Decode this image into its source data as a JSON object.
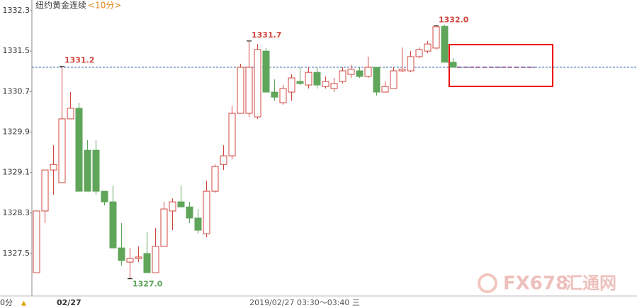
{
  "chart_data": {
    "type": "candlestick",
    "title": "纽约黄金连续",
    "period_label": "<10分>",
    "open": [
      1327.12,
      1328.34,
      1329.15,
      1328.9,
      1330.16,
      1330.37,
      1329.54,
      1329.54,
      1328.73,
      1328.52,
      1327.61,
      1327.33,
      1327.4,
      1327.5,
      1327.12,
      1327.64,
      1328.34,
      1328.52,
      1328.42,
      1328.2,
      1327.89,
      1328.73,
      1329.26,
      1329.43,
      1330.27,
      1330.27,
      1330.2,
      1331.5,
      1330.69,
      1330.48,
      1330.69,
      1330.9,
      1330.83,
      1331.08,
      1330.8,
      1330.76,
      1330.9,
      1331.04,
      1331.11,
      1331.0,
      1331.18,
      1330.69,
      1330.76,
      1331.11,
      1331.11,
      1331.39,
      1331.5,
      1331.56,
      1331.99,
      1331.28
    ],
    "high": [
      1328.34,
      1329.15,
      1329.64,
      1331.2,
      1330.69,
      1330.48,
      1329.74,
      1329.74,
      1328.73,
      1328.84,
      1328.1,
      1327.61,
      1327.64,
      1327.92,
      1328.0,
      1328.52,
      1328.59,
      1328.84,
      1328.52,
      1328.38,
      1328.94,
      1329.26,
      1329.64,
      1330.41,
      1331.25,
      1331.7,
      1331.64,
      1331.56,
      1330.94,
      1330.83,
      1331.04,
      1331.18,
      1331.18,
      1331.18,
      1331.0,
      1330.97,
      1331.18,
      1331.23,
      1331.18,
      1331.39,
      1331.18,
      1330.9,
      1331.18,
      1331.57,
      1331.5,
      1331.57,
      1331.7,
      1332.0,
      1332.02,
      1331.36
    ],
    "low": [
      1327.12,
      1328.1,
      1328.66,
      1328.9,
      1330.16,
      1328.73,
      1328.73,
      1328.66,
      1328.45,
      1327.61,
      1327.26,
      1327.0,
      1327.33,
      1327.12,
      1327.12,
      1327.64,
      1327.96,
      1328.42,
      1328.1,
      1327.89,
      1327.82,
      1328.7,
      1329.15,
      1329.36,
      1330.27,
      1330.2,
      1330.16,
      1330.69,
      1330.52,
      1330.44,
      1330.52,
      1330.83,
      1330.76,
      1330.76,
      1330.76,
      1330.69,
      1330.86,
      1330.97,
      1330.97,
      1330.97,
      1330.62,
      1330.69,
      1330.76,
      1331.08,
      1331.08,
      1331.36,
      1331.46,
      1331.53,
      1331.28,
      1331.18
    ],
    "close": [
      1328.34,
      1329.15,
      1329.26,
      1330.16,
      1330.37,
      1328.73,
      1328.73,
      1328.73,
      1328.52,
      1327.61,
      1327.36,
      1327.4,
      1327.43,
      1327.12,
      1327.64,
      1328.38,
      1328.52,
      1328.42,
      1328.2,
      1327.96,
      1328.73,
      1329.22,
      1329.43,
      1330.27,
      1331.18,
      1331.18,
      1331.53,
      1330.69,
      1330.59,
      1330.76,
      1330.97,
      1330.86,
      1331.08,
      1330.83,
      1330.9,
      1330.86,
      1331.11,
      1331.14,
      1331.0,
      1331.18,
      1330.69,
      1330.8,
      1331.11,
      1331.14,
      1331.39,
      1331.53,
      1331.64,
      1331.98,
      1331.28,
      1331.18
    ],
    "up_color": "#d0473f",
    "down_color": "#5fa55a",
    "ylim": [
      1326.66,
      1332.51
    ],
    "yticks": [
      1327.5,
      1328.3,
      1329.1,
      1329.9,
      1330.7,
      1331.5,
      1332.3
    ],
    "reference_line": 1331.18,
    "annotations": [
      {
        "text": "1331.2",
        "value": 1331.2
      },
      {
        "text": "1331.7",
        "value": 1331.7
      },
      {
        "text": "1332.0",
        "value": 1332.0
      },
      {
        "text": "1327.0",
        "value": 1327.0
      }
    ],
    "footer": {
      "period": "0分",
      "date": "02/27",
      "range": "2019/02/27 03:30～03:40 三"
    },
    "watermark": {
      "brand": "FX678",
      "name": "汇通网"
    }
  }
}
